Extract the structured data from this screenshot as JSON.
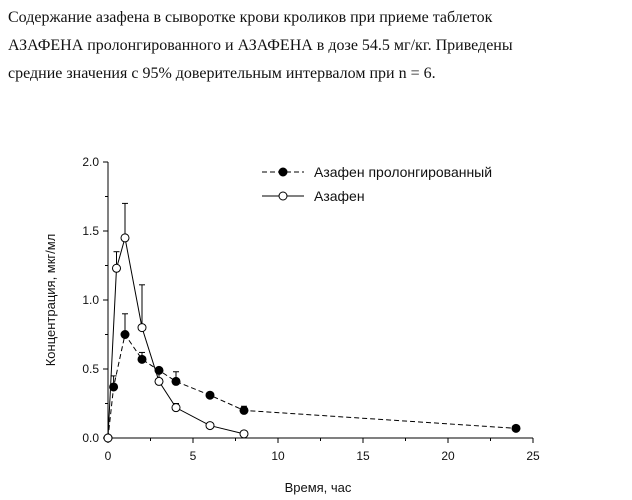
{
  "caption": {
    "line1": "Содержание азафена в сыворотке крови кроликов при приеме таблеток",
    "line2": "АЗАФЕНА пролонгированного и АЗАФЕНА в дозе 54.5 мг/кг. Приведены",
    "line3": "средние значения с 95% доверительным интервалом при n = 6."
  },
  "chart_data": {
    "type": "line",
    "title": "",
    "xlabel": "Время, час",
    "ylabel": "Концентрация, мкг/мл",
    "xlim": [
      0,
      25
    ],
    "ylim": [
      0,
      2.0
    ],
    "xticks": [
      0,
      5,
      10,
      15,
      20,
      25
    ],
    "yticks": [
      0.0,
      0.5,
      1.0,
      1.5,
      2.0
    ],
    "grid": false,
    "legend_position": "top-right",
    "series": [
      {
        "name": "Азафен пролонгированный",
        "marker": "filled-circle",
        "line_style": "dashed",
        "color": "#000000",
        "x": [
          0,
          0.33,
          1,
          2,
          3,
          4,
          6,
          8,
          24
        ],
        "y": [
          0.0,
          0.37,
          0.75,
          0.57,
          0.49,
          0.41,
          0.31,
          0.2,
          0.07
        ],
        "error_bars": [
          0,
          0.08,
          0.15,
          0.05,
          0,
          0.07,
          0,
          0.03,
          0
        ]
      },
      {
        "name": "Азафен",
        "marker": "open-circle",
        "line_style": "solid",
        "color": "#000000",
        "x": [
          0,
          0.5,
          1,
          2,
          3,
          4,
          6,
          8
        ],
        "y": [
          0.0,
          1.23,
          1.45,
          0.8,
          0.41,
          0.22,
          0.09,
          0.03
        ],
        "error_bars": [
          0,
          0.12,
          0.25,
          0.31,
          0.09,
          0.03,
          0,
          0
        ]
      }
    ]
  }
}
